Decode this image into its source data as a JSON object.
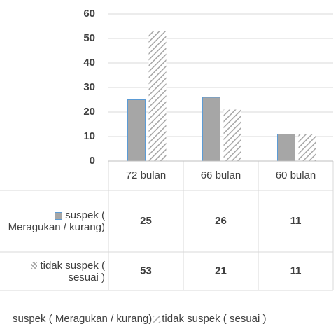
{
  "chart_data": {
    "type": "bar",
    "categories": [
      "72 bulan",
      "66 bulan",
      "60 bulan"
    ],
    "series": [
      {
        "name": "suspek ( Meragukan / kurang)",
        "color": "#a6a6a6",
        "edgecolor": "#5b9bd5",
        "pattern": "solid",
        "values": [
          25,
          26,
          11
        ]
      },
      {
        "name": "tidak suspek ( sesuai )",
        "color": "#a6a6a6",
        "pattern": "diagonal",
        "values": [
          53,
          21,
          11
        ]
      }
    ],
    "ylim": [
      0,
      60
    ],
    "yticks": [
      0,
      10,
      20,
      30,
      40,
      50,
      60
    ],
    "grid": true,
    "data_table": true,
    "legend": "bottom"
  }
}
